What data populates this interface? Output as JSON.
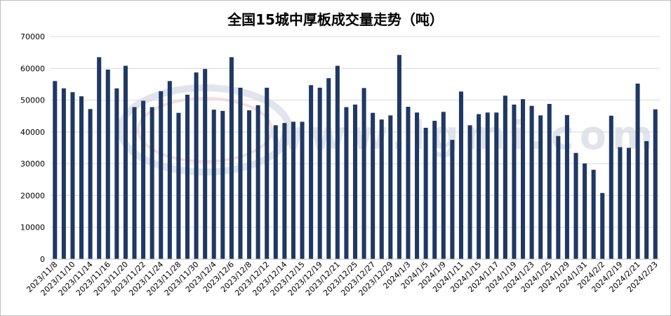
{
  "chart_data": {
    "type": "bar",
    "title": "全国15城中厚板成交量走势（吨）",
    "ylim": [
      0,
      70000
    ],
    "yticks": [
      0,
      10000,
      20000,
      30000,
      40000,
      50000,
      60000,
      70000
    ],
    "grid": true,
    "bar_color": "#1f3864",
    "watermark_text": "www.lgmi.com",
    "values": [
      56000,
      53700,
      52500,
      51200,
      47200,
      63500,
      59600,
      53700,
      60800,
      47800,
      49800,
      47800,
      52800,
      56000,
      46000,
      51700,
      58700,
      59800,
      47000,
      46600,
      63500,
      53900,
      46800,
      48400,
      53900,
      42100,
      42800,
      43200,
      43200,
      54700,
      53900,
      56900,
      60800,
      47800,
      48600,
      53800,
      46000,
      43900,
      45200,
      64200,
      47900,
      46100,
      41300,
      43500,
      46300,
      37500,
      52700,
      42100,
      45600,
      46100,
      46100,
      51400,
      48600,
      50300,
      48200,
      45200,
      48800,
      38700,
      45300,
      33400,
      30100,
      28100,
      20800,
      45100,
      35200,
      35000,
      55200,
      37100,
      47100
    ],
    "x_labels": [
      "2023/11/8",
      "2023/11/10",
      "2023/11/14",
      "2023/11/16",
      "2023/11/20",
      "2023/11/22",
      "2023/11/24",
      "2023/11/28",
      "2023/11/30",
      "2023/12/4",
      "2023/12/6",
      "2023/12/8",
      "2023/12/12",
      "2023/12/14",
      "2023/12/15",
      "2023/12/19",
      "2023/12/21",
      "2023/12/25",
      "2023/12/27",
      "2023/12/29",
      "2024/1/3",
      "2024/1/5",
      "2024/1/9",
      "2024/1/11",
      "2024/1/15",
      "2024/1/17",
      "2024/1/19",
      "2024/1/23",
      "2024/1/25",
      "2024/1/29",
      "2024/1/31",
      "2024/2/2",
      "2024/2/19",
      "2024/2/21",
      "2024/2/23"
    ],
    "x_label_every": 2
  }
}
